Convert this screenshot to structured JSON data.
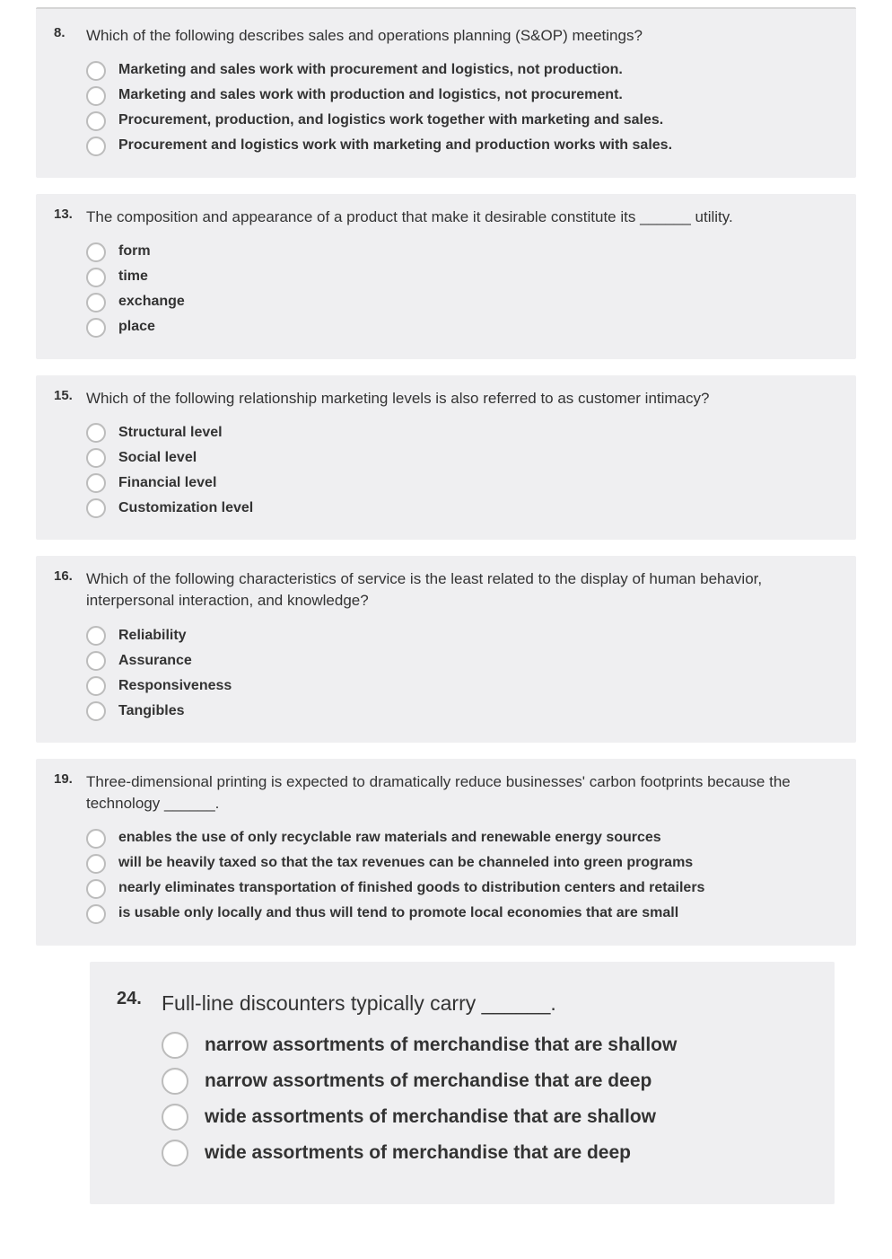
{
  "colors": {
    "block_bg": "#efeff1",
    "page_bg": "#ffffff",
    "text": "#333333",
    "radio_border": "#bcbcbc",
    "divider": "#d5d5d5"
  },
  "typography": {
    "family": "Arial, Helvetica, sans-serif",
    "question_num_size": 15,
    "question_text_size": 17,
    "option_size": 16,
    "option_weight": "bold",
    "large_question_num_size": 20,
    "large_question_text_size": 23,
    "large_option_size": 21
  },
  "questions": [
    {
      "number": "8.",
      "text": "Which of the following describes sales and operations planning (S&OP) meetings?",
      "options": [
        "Marketing and sales work with procurement and logistics, not production.",
        "Marketing and sales work with production and logistics, not procurement.",
        "Procurement, production, and logistics work together with marketing and sales.",
        "Procurement and logistics work with marketing and production works with sales."
      ],
      "variant": "first"
    },
    {
      "number": "13.",
      "text": "The composition and appearance of a product that make it desirable constitute its ______ utility.",
      "options": [
        "form",
        "time",
        "exchange",
        "place"
      ],
      "variant": "normal"
    },
    {
      "number": "15.",
      "text": "Which of the following relationship marketing levels is also referred to as customer intimacy?",
      "options": [
        "Structural level",
        "Social level",
        "Financial level",
        "Customization level"
      ],
      "variant": "normal"
    },
    {
      "number": "16.",
      "text": "Which of the following characteristics of service is the least related to the display of human behavior, interpersonal interaction, and knowledge?",
      "options": [
        "Reliability",
        "Assurance",
        "Responsiveness",
        "Tangibles"
      ],
      "variant": "normal"
    },
    {
      "number": "19.",
      "text": "Three-dimensional printing is expected to dramatically reduce businesses' carbon footprints because the technology ______.",
      "options": [
        "enables the use of only recyclable raw materials and renewable energy sources",
        "will be heavily taxed so that the tax revenues can be channeled into green programs",
        "nearly eliminates transportation of finished goods to distribution centers and retailers",
        "is usable only locally and thus will tend to promote local economies that are small"
      ],
      "variant": "normal"
    },
    {
      "number": "24.",
      "text": "Full-line discounters typically carry ______.",
      "options": [
        "narrow assortments of merchandise that are shallow",
        "narrow assortments of merchandise that are deep",
        "wide assortments of merchandise that are shallow",
        "wide assortments of merchandise that are deep"
      ],
      "variant": "large"
    }
  ]
}
